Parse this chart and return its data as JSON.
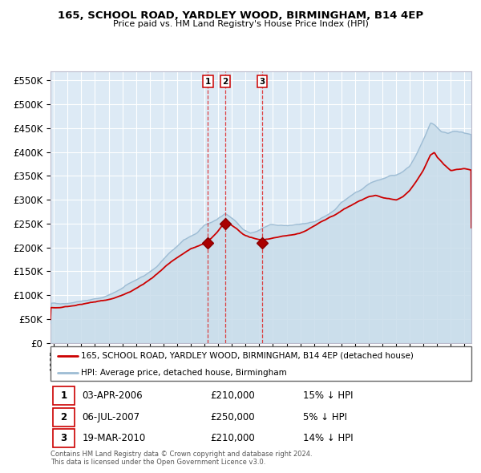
{
  "title": "165, SCHOOL ROAD, YARDLEY WOOD, BIRMINGHAM, B14 4EP",
  "subtitle": "Price paid vs. HM Land Registry's House Price Index (HPI)",
  "legend_line1": "165, SCHOOL ROAD, YARDLEY WOOD, BIRMINGHAM, B14 4EP (detached house)",
  "legend_line2": "HPI: Average price, detached house, Birmingham",
  "footer1": "Contains HM Land Registry data © Crown copyright and database right 2024.",
  "footer2": "This data is licensed under the Open Government Licence v3.0.",
  "transactions": [
    {
      "num": 1,
      "date": "03-APR-2006",
      "price": "£210,000",
      "pct": "15% ↓ HPI",
      "year": 2006.25
    },
    {
      "num": 2,
      "date": "06-JUL-2007",
      "price": "£250,000",
      "pct": "5% ↓ HPI",
      "year": 2007.52
    },
    {
      "num": 3,
      "date": "19-MAR-2010",
      "price": "£210,000",
      "pct": "14% ↓ HPI",
      "year": 2010.22
    }
  ],
  "hpi_color": "#9dbcd4",
  "hpi_fill_color": "#c8dcea",
  "property_color": "#cc0000",
  "background_color": "#ddeaf5",
  "ylim": [
    0,
    570000
  ],
  "xlim_start": 1994.75,
  "xlim_end": 2025.5
}
